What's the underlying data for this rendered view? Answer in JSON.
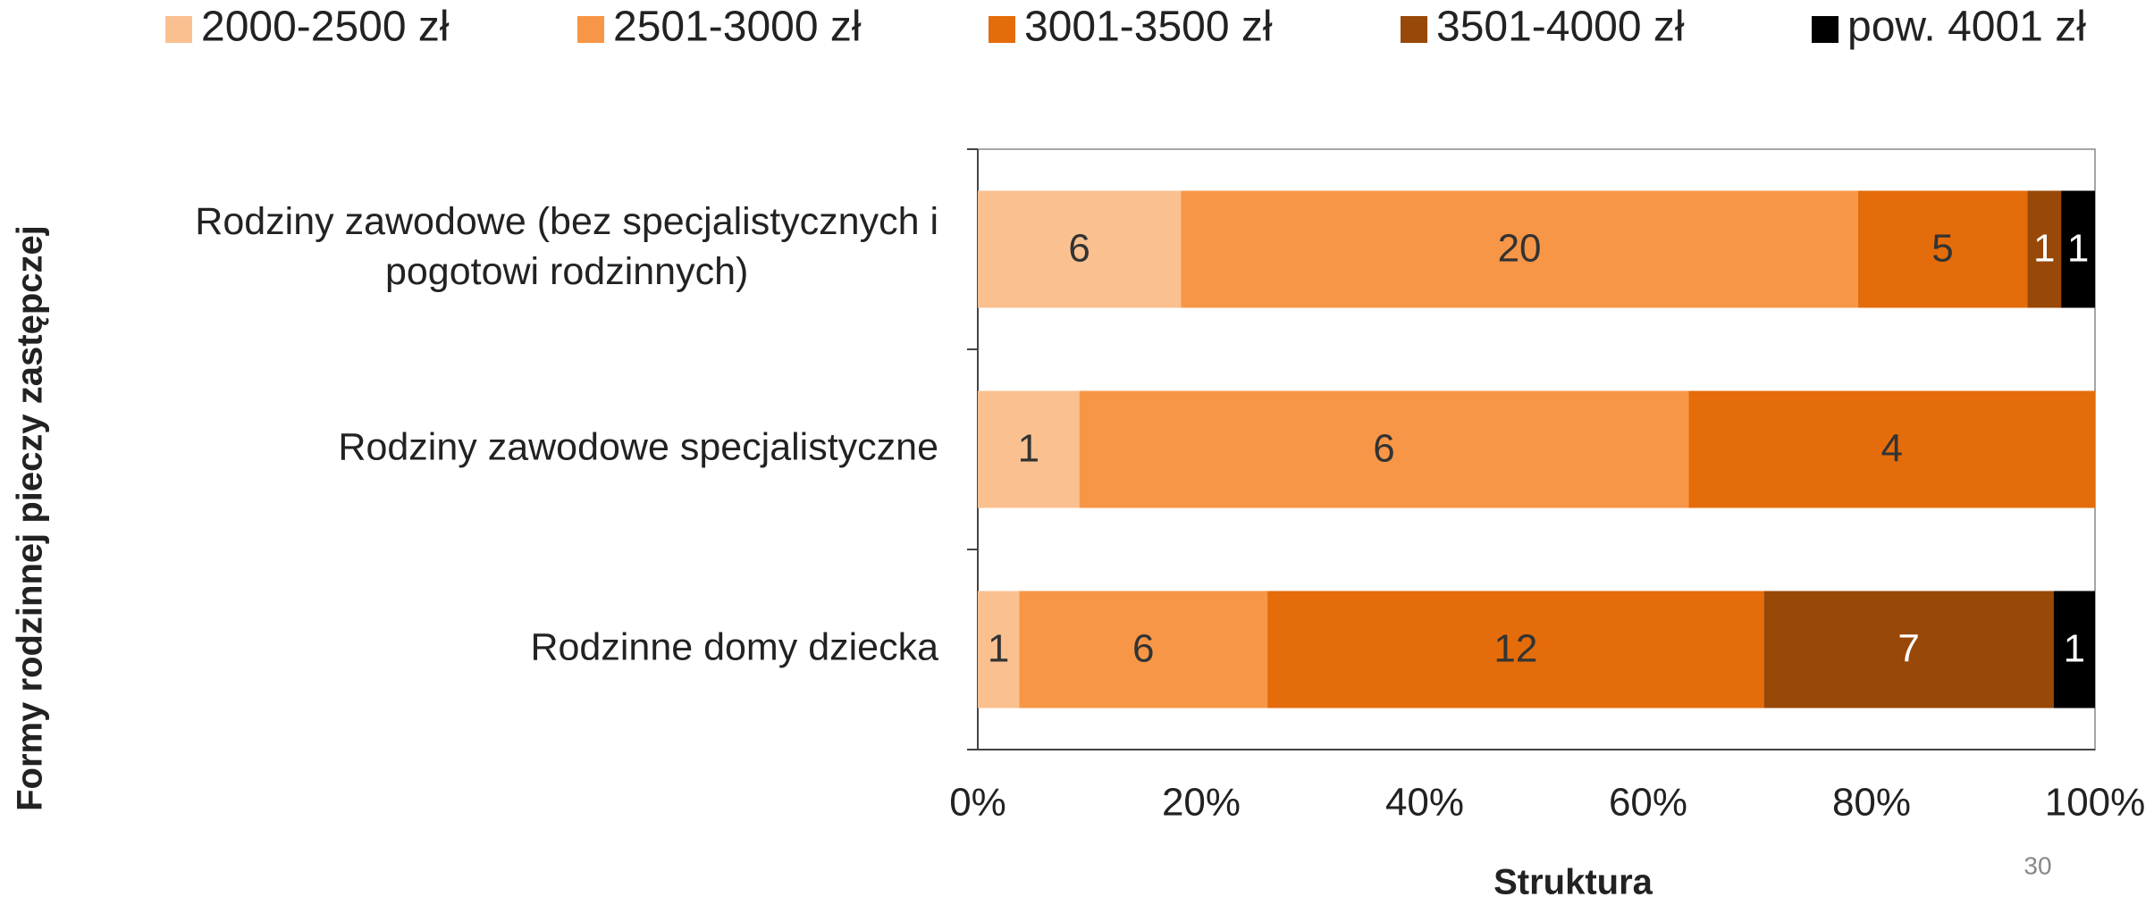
{
  "chart_data": {
    "type": "bar",
    "orientation": "horizontal",
    "stacking": "percent",
    "categories": [
      "Rodziny zawodowe (bez specjalistycznych i pogotowi rodzinnych)",
      "Rodziny zawodowe specjalistyczne",
      "Rodzinne domy dziecka"
    ],
    "series": [
      {
        "name": "2000-2500 zł",
        "color": "#FAC090",
        "values": [
          6,
          1,
          1
        ]
      },
      {
        "name": "2501-3000 zł",
        "color": "#F79646",
        "values": [
          20,
          6,
          6
        ]
      },
      {
        "name": "3001-3500 zł",
        "color": "#E46C0A",
        "values": [
          5,
          4,
          12
        ]
      },
      {
        "name": "3501-4000 zł",
        "color": "#984807",
        "values": [
          1,
          null,
          7
        ]
      },
      {
        "name": "pow. 4001 zł",
        "color": "#000000",
        "values": [
          1,
          null,
          1
        ]
      }
    ],
    "xlim": [
      0,
      100
    ],
    "xticks": [
      {
        "value": 0,
        "label": "0%"
      },
      {
        "value": 20,
        "label": "20%"
      },
      {
        "value": 40,
        "label": "40%"
      },
      {
        "value": 60,
        "label": "60%"
      },
      {
        "value": 80,
        "label": "80%"
      },
      {
        "value": 100,
        "label": "100%"
      }
    ],
    "xlabel": "Struktura",
    "ylabel": "Formy rodzinnej pieczy zastępczej",
    "legend": "top",
    "page_number": "30"
  }
}
